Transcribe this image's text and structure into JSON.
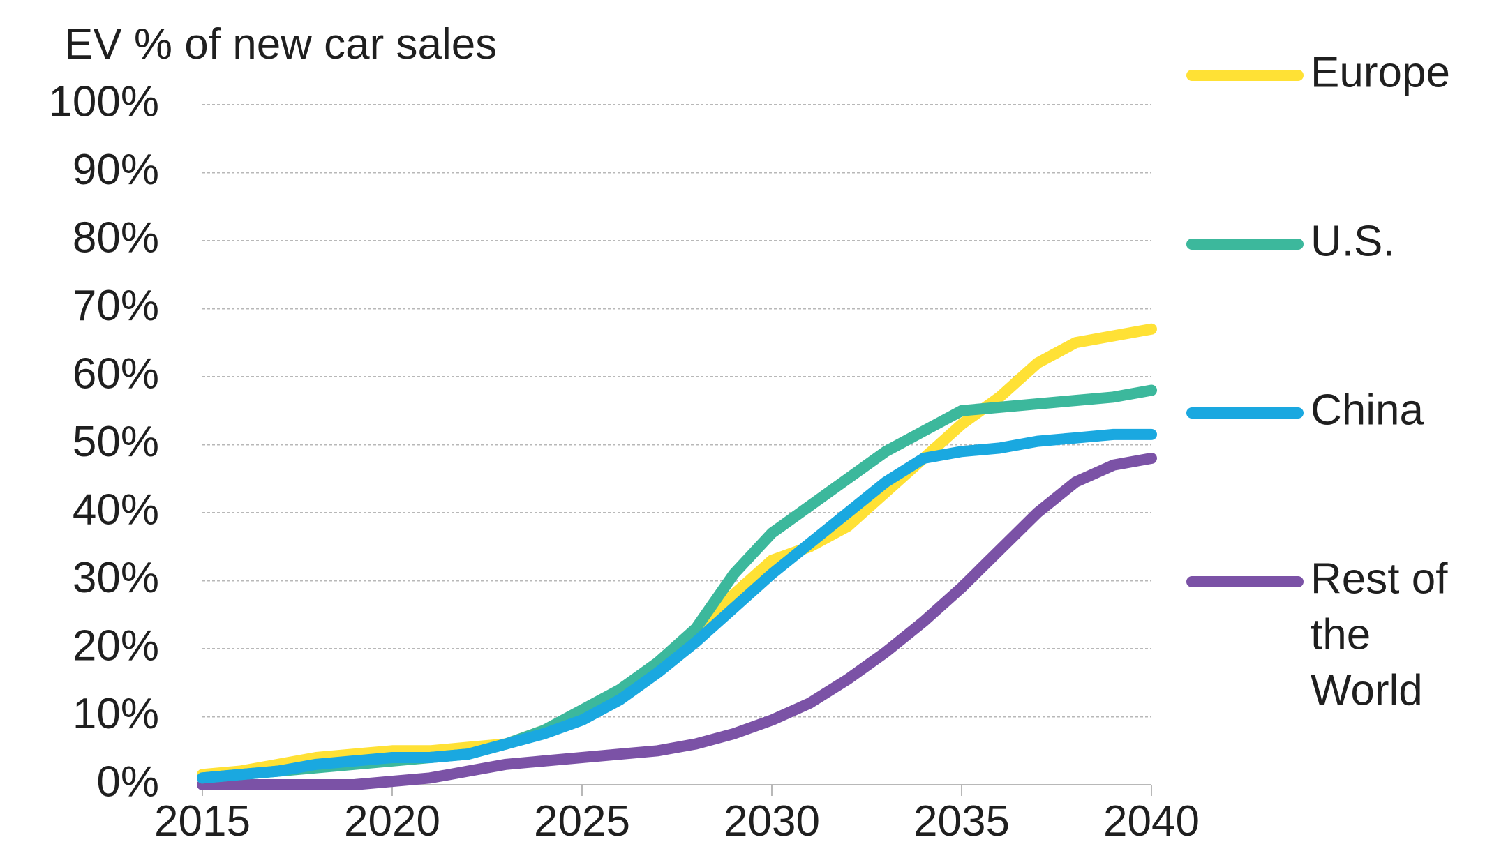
{
  "chart_data": {
    "type": "line",
    "title": "",
    "ylabel": "EV % of new car sales",
    "xlabel": "",
    "xlim": [
      2015,
      2040
    ],
    "ylim": [
      0,
      100
    ],
    "yticks": [
      0,
      10,
      20,
      30,
      40,
      50,
      60,
      70,
      80,
      90,
      100
    ],
    "ytick_labels": [
      "0%",
      "10%",
      "20%",
      "30%",
      "40%",
      "50%",
      "60%",
      "70%",
      "80%",
      "90%",
      "100%"
    ],
    "xticks": [
      2015,
      2020,
      2025,
      2030,
      2035,
      2040
    ],
    "xtick_labels": [
      "2015",
      "2020",
      "2025",
      "2030",
      "2035",
      "2040"
    ],
    "grid": true,
    "legend_position": "right",
    "x": [
      2015,
      2016,
      2017,
      2018,
      2019,
      2020,
      2021,
      2022,
      2023,
      2024,
      2025,
      2026,
      2027,
      2028,
      2029,
      2030,
      2031,
      2032,
      2033,
      2034,
      2035,
      2036,
      2037,
      2038,
      2039,
      2040
    ],
    "series": [
      {
        "name": "Europe",
        "color": "#ffe135",
        "values": [
          1.5,
          2,
          3,
          4,
          4.5,
          5,
          5,
          5.5,
          6,
          8,
          10,
          13,
          17,
          22,
          28,
          33,
          35,
          38,
          43,
          48,
          53,
          57,
          62,
          65,
          66,
          67
        ]
      },
      {
        "name": "U.S.",
        "color": "#3cb89c",
        "values": [
          1,
          1.5,
          2,
          2.5,
          3,
          3.5,
          4,
          4.5,
          6,
          8,
          11,
          14,
          18,
          23,
          31,
          37,
          41,
          45,
          49,
          52,
          55,
          55.5,
          56,
          56.5,
          57,
          58
        ]
      },
      {
        "name": "China",
        "color": "#1aa8e0",
        "values": [
          1,
          1.5,
          2,
          3,
          3.5,
          4,
          4,
          4.5,
          6,
          7.5,
          9.5,
          12.5,
          16.5,
          21,
          26,
          31,
          35.5,
          40,
          44.5,
          48,
          49,
          49.5,
          50.5,
          51,
          51.5,
          51.5
        ]
      },
      {
        "name": "Rest of the World",
        "label_lines": [
          "Rest of",
          "the",
          "World"
        ],
        "color": "#7b52a6",
        "values": [
          0,
          0,
          0,
          0,
          0,
          0.5,
          1,
          2,
          3,
          3.5,
          4,
          4.5,
          5,
          6,
          7.5,
          9.5,
          12,
          15.5,
          19.5,
          24,
          29,
          34.5,
          40,
          44.5,
          47,
          48
        ]
      }
    ]
  }
}
